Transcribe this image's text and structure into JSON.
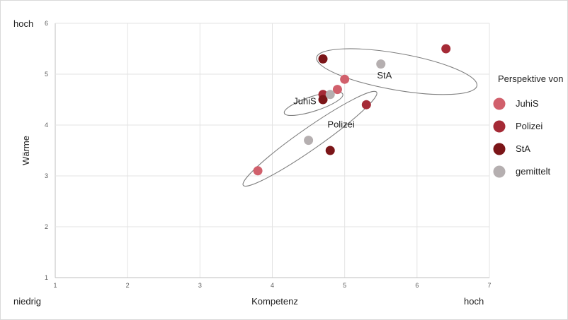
{
  "chart_data": {
    "type": "scatter",
    "xlabel": "Kompetenz",
    "ylabel": "Wärme",
    "xlim": [
      1,
      7
    ],
    "ylim": [
      1,
      6
    ],
    "x_ticks": [
      "1",
      "2",
      "3",
      "4",
      "5",
      "6",
      "7"
    ],
    "y_ticks": [
      "1",
      "2",
      "3",
      "4",
      "5",
      "6"
    ],
    "grid": true,
    "corner_labels": {
      "top_left": "hoch",
      "bottom_left": "niedrig",
      "bottom_right": "hoch"
    },
    "legend": {
      "title": "Perspektive von",
      "placement": "right",
      "entries": [
        {
          "name": "JuhiS",
          "color": "#d1606c"
        },
        {
          "name": "Polizei",
          "color": "#a52a36"
        },
        {
          "name": "StA",
          "color": "#7b1518"
        },
        {
          "name": "gemittelt",
          "color": "#b5afb0"
        }
      ]
    },
    "series": [
      {
        "name": "JuhiS",
        "color": "#d1606c",
        "points": [
          [
            3.8,
            3.1
          ],
          [
            4.9,
            4.7
          ],
          [
            5.0,
            4.9
          ]
        ]
      },
      {
        "name": "Polizei",
        "color": "#a52a36",
        "points": [
          [
            4.7,
            4.6
          ],
          [
            5.3,
            4.4
          ],
          [
            6.4,
            5.5
          ]
        ]
      },
      {
        "name": "StA",
        "color": "#7b1518",
        "points": [
          [
            4.7,
            5.3
          ],
          [
            4.7,
            4.5
          ],
          [
            4.8,
            3.5
          ]
        ]
      },
      {
        "name": "gemittelt",
        "color": "#b5afb0",
        "points": [
          [
            4.5,
            3.7
          ],
          [
            4.8,
            4.6
          ],
          [
            5.5,
            5.2
          ]
        ]
      }
    ],
    "clusters": [
      {
        "label": "StA",
        "center": [
          5.72,
          5.05
        ],
        "radii": [
          2.25,
          0.72
        ],
        "rotation_deg": 10,
        "label_at": [
          5.55,
          4.92
        ]
      },
      {
        "label": "JuhiS",
        "center": [
          4.57,
          4.42
        ],
        "radii": [
          0.85,
          0.29
        ],
        "rotation_deg": -18,
        "label_at": [
          4.45,
          4.41
        ]
      },
      {
        "label": "Polizei",
        "center": [
          4.52,
          3.73
        ],
        "radii": [
          2.25,
          0.42
        ],
        "rotation_deg": -35,
        "label_at": [
          4.95,
          3.95
        ]
      }
    ]
  }
}
